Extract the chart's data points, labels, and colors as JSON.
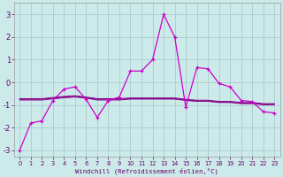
{
  "xlabel": "Windchill (Refroidissement éolien,°C)",
  "background_color": "#cceaea",
  "grid_color": "#aacccc",
  "line_color": "#cc00cc",
  "flat_line_color": "#880088",
  "xlim": [
    -0.5,
    23.5
  ],
  "ylim": [
    -3.3,
    3.5
  ],
  "yticks": [
    -3,
    -2,
    -1,
    0,
    1,
    2,
    3
  ],
  "xticks": [
    0,
    1,
    2,
    3,
    4,
    5,
    6,
    7,
    8,
    9,
    10,
    11,
    12,
    13,
    14,
    15,
    16,
    17,
    18,
    19,
    20,
    21,
    22,
    23
  ],
  "main_series": [
    -3.0,
    -1.8,
    -1.7,
    -0.8,
    -0.3,
    -0.2,
    -0.75,
    -1.55,
    -0.8,
    -0.65,
    0.5,
    0.5,
    1.0,
    3.0,
    2.0,
    -1.1,
    0.65,
    0.6,
    -0.05,
    -0.2,
    -0.8,
    -0.85,
    -1.3,
    -1.35
  ],
  "flat_series1": [
    -0.75,
    -0.75,
    -0.75,
    -0.7,
    -0.65,
    -0.62,
    -0.68,
    -0.75,
    -0.75,
    -0.75,
    -0.72,
    -0.72,
    -0.72,
    -0.72,
    -0.72,
    -0.78,
    -0.82,
    -0.82,
    -0.87,
    -0.87,
    -0.92,
    -0.92,
    -0.97,
    -0.97
  ],
  "flat_series2": [
    -0.78,
    -0.78,
    -0.78,
    -0.73,
    -0.68,
    -0.65,
    -0.7,
    -0.78,
    -0.78,
    -0.78,
    -0.74,
    -0.74,
    -0.74,
    -0.74,
    -0.74,
    -0.8,
    -0.84,
    -0.84,
    -0.89,
    -0.89,
    -0.94,
    -0.94,
    -0.99,
    -0.99
  ],
  "flat_series3": [
    -0.72,
    -0.72,
    -0.72,
    -0.67,
    -0.62,
    -0.59,
    -0.65,
    -0.72,
    -0.72,
    -0.72,
    -0.69,
    -0.69,
    -0.69,
    -0.69,
    -0.69,
    -0.75,
    -0.79,
    -0.79,
    -0.84,
    -0.84,
    -0.89,
    -0.89,
    -0.94,
    -0.94
  ]
}
